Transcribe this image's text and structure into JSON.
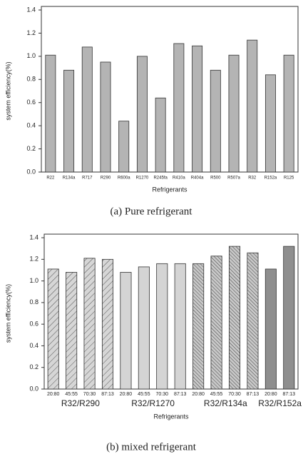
{
  "chart_data": [
    {
      "type": "bar",
      "y_label": "system efficiency(%)",
      "x_label": "Refrigerants",
      "caption": "(a)  Pure  refrigerant",
      "categories": [
        "R22",
        "R134a",
        "R717",
        "R290",
        "R600a",
        "R1270",
        "R245fa",
        "R410a",
        "R404a",
        "R500",
        "R507a",
        "R32",
        "R152a",
        "R125"
      ],
      "values": [
        1.01,
        0.88,
        1.08,
        0.95,
        0.44,
        1.0,
        0.64,
        1.11,
        1.09,
        0.88,
        1.01,
        1.14,
        0.84,
        1.01
      ],
      "color": "#b4b4b4",
      "ylim": [
        0,
        1.4
      ],
      "yticks": [
        {
          "value": 0,
          "label": "0.0"
        },
        0.2,
        0.4,
        0.6,
        0.8,
        {
          "value": 1,
          "label": "1.0"
        },
        1.2,
        1.4
      ]
    },
    {
      "type": "grouped_bar",
      "y_label": "system efficiency(%)",
      "x_label": "Refrigerants",
      "caption": "(b)  mixed  refrigerant",
      "groups": [
        {
          "name": "R32/R290",
          "pattern": "hatch",
          "categories": [
            "20:80",
            "45:55",
            "70:30",
            "87:13"
          ],
          "values": [
            1.11,
            1.08,
            1.21,
            1.2
          ]
        },
        {
          "name": "R32/R1270",
          "pattern": "plain",
          "categories": [
            "20:80",
            "45:55",
            "70:30",
            "87:13"
          ],
          "values": [
            1.08,
            1.13,
            1.16,
            1.16
          ]
        },
        {
          "name": "R32/R134a",
          "pattern": "dense-hatch",
          "categories": [
            "20:80",
            "45:55",
            "70:30",
            "87:13"
          ],
          "values": [
            1.16,
            1.23,
            1.32,
            1.26
          ]
        },
        {
          "name": "R32/R152a",
          "pattern": "dark",
          "categories": [
            "20:80",
            "87:13"
          ],
          "values": [
            1.11,
            1.32
          ]
        }
      ],
      "ylim": [
        0,
        1.4
      ],
      "yticks": [
        {
          "value": 0,
          "label": "0.0"
        },
        0.2,
        0.4,
        0.6,
        0.8,
        {
          "value": 1,
          "label": "1.0"
        },
        1.2,
        1.4
      ]
    }
  ]
}
